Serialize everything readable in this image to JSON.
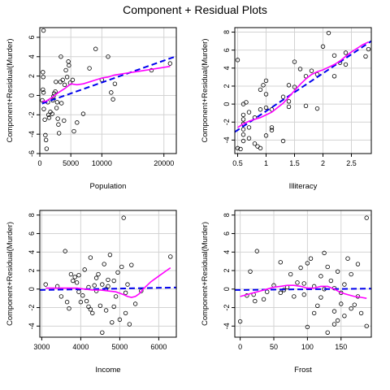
{
  "title": "Component + Residual Plots",
  "chart_data": [
    {
      "type": "scatter",
      "xlabel": "Population",
      "ylabel": "Component+Residual(Murder)",
      "xlim": [
        0,
        22000
      ],
      "ylim": [
        -6,
        7
      ],
      "xticks": [
        0,
        5000,
        10000,
        20000
      ],
      "yticks": [
        -6,
        -4,
        -2,
        0,
        2,
        4,
        6
      ],
      "points": [
        [
          600,
          6.7
        ],
        [
          500,
          2.4
        ],
        [
          550,
          1.9
        ],
        [
          500,
          0.6
        ],
        [
          600,
          0.3
        ],
        [
          400,
          -0.5
        ],
        [
          650,
          -1.4
        ],
        [
          800,
          -2.5
        ],
        [
          900,
          -4.1
        ],
        [
          1000,
          -4.6
        ],
        [
          1100,
          -5.5
        ],
        [
          1300,
          -0.7
        ],
        [
          1400,
          -2
        ],
        [
          1500,
          -2.3
        ],
        [
          1700,
          -1.7
        ],
        [
          2000,
          -1.9
        ],
        [
          2100,
          -0.5
        ],
        [
          2200,
          -0.1
        ],
        [
          2300,
          0.2
        ],
        [
          2500,
          0.4
        ],
        [
          2600,
          1.4
        ],
        [
          2700,
          -1.3
        ],
        [
          2800,
          -0.7
        ],
        [
          2900,
          -2.4
        ],
        [
          3000,
          -3
        ],
        [
          3100,
          -3.9
        ],
        [
          3300,
          1.4
        ],
        [
          3400,
          4
        ],
        [
          3500,
          -0.8
        ],
        [
          3700,
          1.6
        ],
        [
          3900,
          -2.6
        ],
        [
          4000,
          1.1
        ],
        [
          4200,
          2.6
        ],
        [
          4400,
          1.9
        ],
        [
          4600,
          3.5
        ],
        [
          4700,
          3.1
        ],
        [
          4900,
          1.3
        ],
        [
          5300,
          1.6
        ],
        [
          5500,
          -3.7
        ],
        [
          6000,
          -2.8
        ],
        [
          7000,
          -1.9
        ],
        [
          8000,
          2.8
        ],
        [
          9000,
          4.8
        ],
        [
          10000,
          1.6
        ],
        [
          11000,
          4
        ],
        [
          11500,
          0.3
        ],
        [
          11800,
          -0.4
        ],
        [
          12100,
          1.2
        ],
        [
          18000,
          2.6
        ],
        [
          21000,
          3.3
        ]
      ],
      "ref_line": [
        [
          -1000,
          -1.15
        ],
        [
          22000,
          4.05
        ]
      ],
      "smooth": [
        [
          400,
          -0.6
        ],
        [
          1000,
          -0.6
        ],
        [
          2000,
          -0.2
        ],
        [
          3000,
          0.3
        ],
        [
          4000,
          0.7
        ],
        [
          5000,
          1.2
        ],
        [
          6000,
          1.1
        ],
        [
          7000,
          1.2
        ],
        [
          8000,
          1.4
        ],
        [
          9000,
          1.6
        ],
        [
          10000,
          1.8
        ],
        [
          11000,
          1.9
        ],
        [
          12000,
          2.1
        ],
        [
          14000,
          2.3
        ],
        [
          16000,
          2.5
        ],
        [
          18000,
          2.7
        ],
        [
          21000,
          3.0
        ]
      ]
    },
    {
      "type": "scatter",
      "xlabel": "Illiteracy",
      "ylabel": "Component+Residual(Murder)",
      "xlim": [
        0.45,
        2.85
      ],
      "ylim": [
        -5.5,
        8.5
      ],
      "xticks": [
        0.5,
        1.0,
        1.5,
        2.0,
        2.5
      ],
      "yticks": [
        -4,
        -2,
        0,
        2,
        4,
        6,
        8
      ],
      "points": [
        [
          0.5,
          4.9
        ],
        [
          0.5,
          -4.9
        ],
        [
          0.55,
          -5
        ],
        [
          0.6,
          -1.2
        ],
        [
          0.6,
          -1.7
        ],
        [
          0.6,
          -2.2
        ],
        [
          0.6,
          -2.8
        ],
        [
          0.6,
          -3.4
        ],
        [
          0.6,
          -4.1
        ],
        [
          0.6,
          0
        ],
        [
          0.65,
          0.2
        ],
        [
          0.7,
          -0.9
        ],
        [
          0.7,
          -2.6
        ],
        [
          0.7,
          -3.8
        ],
        [
          0.8,
          -1.5
        ],
        [
          0.8,
          -4.4
        ],
        [
          0.85,
          -4.7
        ],
        [
          0.9,
          1.6
        ],
        [
          0.9,
          -0.6
        ],
        [
          0.9,
          -4.9
        ],
        [
          0.95,
          2.1
        ],
        [
          1.0,
          2.6
        ],
        [
          1.0,
          1.1
        ],
        [
          1.0,
          -0.4
        ],
        [
          1.0,
          -3.5
        ],
        [
          1.1,
          -0.6
        ],
        [
          1.1,
          -2.6
        ],
        [
          1.1,
          -2.9
        ],
        [
          1.3,
          0.8
        ],
        [
          1.3,
          -4.1
        ],
        [
          1.4,
          2.1
        ],
        [
          1.4,
          0.3
        ],
        [
          1.4,
          -0.3
        ],
        [
          1.5,
          1.9
        ],
        [
          1.5,
          4.7
        ],
        [
          1.6,
          3.9
        ],
        [
          1.7,
          3.1
        ],
        [
          1.7,
          -0.2
        ],
        [
          1.8,
          3.7
        ],
        [
          1.9,
          3.3
        ],
        [
          1.9,
          -0.5
        ],
        [
          2.0,
          6.4
        ],
        [
          2.1,
          7.9
        ],
        [
          2.2,
          3.1
        ],
        [
          2.2,
          5.4
        ],
        [
          2.3,
          4.6
        ],
        [
          2.4,
          5.7
        ],
        [
          2.4,
          4.4
        ],
        [
          2.8,
          6.1
        ],
        [
          2.75,
          5.3
        ]
      ],
      "ref_line": [
        [
          0.45,
          -3.1
        ],
        [
          2.85,
          7.0
        ]
      ],
      "smooth": [
        [
          0.5,
          -2.6
        ],
        [
          0.6,
          -2.2
        ],
        [
          0.7,
          -1.9
        ],
        [
          0.8,
          -1.7
        ],
        [
          0.9,
          -1.5
        ],
        [
          1.0,
          -1.2
        ],
        [
          1.1,
          -0.9
        ],
        [
          1.2,
          -0.4
        ],
        [
          1.3,
          0.1
        ],
        [
          1.4,
          0.8
        ],
        [
          1.5,
          1.5
        ],
        [
          1.6,
          2.2
        ],
        [
          1.7,
          2.8
        ],
        [
          1.8,
          3.3
        ],
        [
          1.9,
          3.6
        ],
        [
          2.0,
          3.8
        ],
        [
          2.1,
          4.1
        ],
        [
          2.2,
          4.4
        ],
        [
          2.3,
          4.8
        ],
        [
          2.4,
          5.3
        ],
        [
          2.5,
          5.8
        ],
        [
          2.6,
          6.2
        ],
        [
          2.7,
          6.6
        ],
        [
          2.8,
          6.9
        ]
      ]
    },
    {
      "type": "scatter",
      "xlabel": "Income",
      "ylabel": "Component+Residual(Murder)",
      "xlim": [
        2950,
        6450
      ],
      "ylim": [
        -5.2,
        8.5
      ],
      "xticks": [
        3000,
        4000,
        5000,
        6000
      ],
      "yticks": [
        -4,
        -2,
        0,
        2,
        4,
        6,
        8
      ],
      "points": [
        [
          3100,
          0.5
        ],
        [
          3400,
          0.3
        ],
        [
          3500,
          -0.8
        ],
        [
          3600,
          4.1
        ],
        [
          3650,
          -1.4
        ],
        [
          3700,
          -2.1
        ],
        [
          3750,
          1.6
        ],
        [
          3800,
          0.9
        ],
        [
          3850,
          1.3
        ],
        [
          3900,
          0.7
        ],
        [
          3950,
          -0.3
        ],
        [
          4000,
          -1.4
        ],
        [
          4100,
          2.1
        ],
        [
          4150,
          -1.3
        ],
        [
          4200,
          -1.9
        ],
        [
          4200,
          0.2
        ],
        [
          4250,
          3.4
        ],
        [
          4300,
          -2.6
        ],
        [
          4350,
          0.4
        ],
        [
          4400,
          -0.2
        ],
        [
          4450,
          1.6
        ],
        [
          4500,
          -1.8
        ],
        [
          4550,
          -4.7
        ],
        [
          4600,
          2.7
        ],
        [
          4650,
          -2.3
        ],
        [
          4700,
          1
        ],
        [
          4700,
          0.3
        ],
        [
          4750,
          3.7
        ],
        [
          4800,
          -3.6
        ],
        [
          4850,
          0.9
        ],
        [
          4900,
          -0.8
        ],
        [
          4950,
          1.8
        ],
        [
          5000,
          -3.3
        ],
        [
          5050,
          2.4
        ],
        [
          5100,
          7.7
        ],
        [
          5150,
          -2.6
        ],
        [
          5200,
          0.5
        ],
        [
          5250,
          -3.8
        ],
        [
          5300,
          2.6
        ],
        [
          5400,
          -1.6
        ],
        [
          4400,
          1.2
        ],
        [
          4050,
          -0.7
        ],
        [
          3950,
          1.5
        ],
        [
          4650,
          0
        ],
        [
          4850,
          -1.9
        ],
        [
          5550,
          -0.2
        ],
        [
          5150,
          -0.4
        ],
        [
          4250,
          -2.2
        ],
        [
          4550,
          0.5
        ],
        [
          6300,
          3.5
        ]
      ],
      "ref_line": [
        [
          2950,
          -0.1
        ],
        [
          6450,
          0.17
        ]
      ],
      "smooth": [
        [
          3100,
          0.1
        ],
        [
          3300,
          0.1
        ],
        [
          3500,
          0.1
        ],
        [
          3700,
          0.1
        ],
        [
          3900,
          0.1
        ],
        [
          4100,
          0
        ],
        [
          4300,
          -0.1
        ],
        [
          4500,
          -0.1
        ],
        [
          4700,
          -0.2
        ],
        [
          4900,
          -0.3
        ],
        [
          5100,
          -0.6
        ],
        [
          5200,
          -0.8
        ],
        [
          5300,
          -0.9
        ],
        [
          5400,
          -0.8
        ],
        [
          5500,
          -0.5
        ],
        [
          5600,
          0
        ],
        [
          5800,
          0.8
        ],
        [
          6000,
          1.4
        ],
        [
          6200,
          2
        ],
        [
          6300,
          2.3
        ]
      ]
    },
    {
      "type": "scatter",
      "xlabel": "Frost",
      "ylabel": "Component+Residual(Murder)",
      "xlim": [
        -8,
        195
      ],
      "ylim": [
        -5.2,
        8.5
      ],
      "xticks": [
        0,
        50,
        100,
        150
      ],
      "yticks": [
        -4,
        -2,
        0,
        2,
        4,
        6,
        8
      ],
      "points": [
        [
          0,
          -3.5
        ],
        [
          10,
          -0.7
        ],
        [
          15,
          1.9
        ],
        [
          20,
          -0.6
        ],
        [
          22,
          -1.3
        ],
        [
          25,
          4.1
        ],
        [
          35,
          -1.1
        ],
        [
          40,
          -0.3
        ],
        [
          50,
          0.4
        ],
        [
          60,
          2.9
        ],
        [
          65,
          -0.1
        ],
        [
          70,
          0.2
        ],
        [
          75,
          1.6
        ],
        [
          80,
          -0.8
        ],
        [
          85,
          0.7
        ],
        [
          90,
          2.3
        ],
        [
          95,
          -0.6
        ],
        [
          100,
          -4.1
        ],
        [
          100,
          2.8
        ],
        [
          105,
          3.3
        ],
        [
          110,
          -2.6
        ],
        [
          110,
          0.3
        ],
        [
          115,
          -1.8
        ],
        [
          120,
          1.4
        ],
        [
          120,
          -0.9
        ],
        [
          125,
          3.9
        ],
        [
          125,
          0
        ],
        [
          130,
          -4.7
        ],
        [
          130,
          2.4
        ],
        [
          135,
          0.9
        ],
        [
          140,
          -2.4
        ],
        [
          140,
          0.1
        ],
        [
          145,
          -3.4
        ],
        [
          145,
          1.9
        ],
        [
          150,
          -1.6
        ],
        [
          150,
          -0.4
        ],
        [
          155,
          -2.9
        ],
        [
          160,
          3.3
        ],
        [
          165,
          1.6
        ],
        [
          165,
          -2.1
        ],
        [
          170,
          -1.7
        ],
        [
          175,
          2.7
        ],
        [
          175,
          -0.8
        ],
        [
          180,
          -2.6
        ],
        [
          188,
          7.7
        ],
        [
          188,
          -4
        ],
        [
          60,
          -0.4
        ],
        [
          95,
          0.6
        ],
        [
          140,
          -3.8
        ],
        [
          155,
          0.5
        ]
      ],
      "ref_line": [
        [
          -8,
          -0.1
        ],
        [
          195,
          0.05
        ]
      ],
      "smooth": [
        [
          0,
          -0.8
        ],
        [
          10,
          -0.6
        ],
        [
          20,
          -0.4
        ],
        [
          30,
          -0.2
        ],
        [
          40,
          0
        ],
        [
          50,
          0.2
        ],
        [
          60,
          0.3
        ],
        [
          70,
          0.4
        ],
        [
          80,
          0.4
        ],
        [
          90,
          0.3
        ],
        [
          100,
          0.1
        ],
        [
          110,
          0.1
        ],
        [
          120,
          0.3
        ],
        [
          130,
          0.3
        ],
        [
          140,
          0
        ],
        [
          150,
          -0.4
        ],
        [
          160,
          -0.6
        ],
        [
          170,
          -0.8
        ],
        [
          180,
          -0.9
        ],
        [
          188,
          -1
        ]
      ]
    }
  ]
}
